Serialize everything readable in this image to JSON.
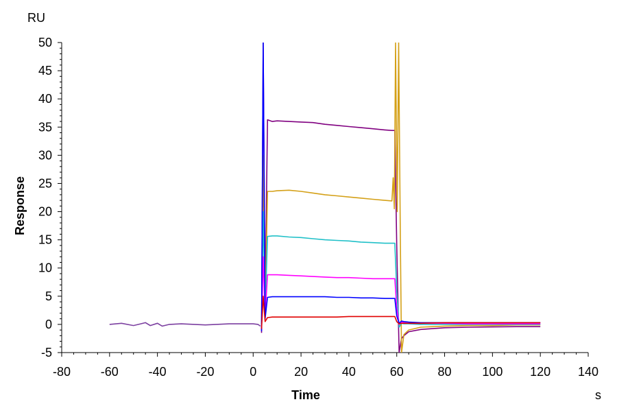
{
  "chart_data": {
    "type": "line",
    "title": "",
    "xlabel": "Time",
    "ylabel": "Response",
    "x_unit": "s",
    "y_unit": "RU",
    "xlim": [
      -80,
      140
    ],
    "ylim": [
      -5,
      50
    ],
    "x_ticks": [
      -80,
      -60,
      -40,
      -20,
      0,
      20,
      40,
      60,
      80,
      100,
      120,
      140
    ],
    "y_ticks": [
      -5,
      0,
      5,
      10,
      15,
      20,
      25,
      30,
      35,
      40,
      45,
      50
    ],
    "grid": false,
    "legend": "none",
    "baseline": {
      "color": "#7b3fa0",
      "x": [
        -60,
        -55,
        -50,
        -47,
        -45,
        -43,
        -40,
        -38,
        -35,
        -30,
        -20,
        -10,
        0,
        2,
        3
      ],
      "y": [
        0.0,
        0.2,
        -0.2,
        0.1,
        0.3,
        -0.2,
        0.2,
        -0.3,
        0.0,
        0.1,
        -0.1,
        0.1,
        0.1,
        0.0,
        -0.3
      ]
    },
    "series": [
      {
        "color": "#800080",
        "x": [
          3.5,
          4.2,
          5,
          6,
          8,
          10,
          15,
          20,
          25,
          30,
          35,
          40,
          45,
          50,
          55,
          58,
          59.2,
          60,
          61,
          62,
          63,
          65,
          70,
          80,
          90,
          100,
          110,
          120
        ],
        "y": [
          -1.5,
          50,
          3,
          36.3,
          36.0,
          36.1,
          36.0,
          35.9,
          35.8,
          35.5,
          35.3,
          35.1,
          34.9,
          34.7,
          34.5,
          34.4,
          34.4,
          14,
          -5,
          -2.5,
          -2.0,
          -1.3,
          -0.9,
          -0.6,
          -0.5,
          -0.45,
          -0.4,
          -0.4
        ]
      },
      {
        "color": "#d4a017",
        "x": [
          3.5,
          4.2,
          5,
          6,
          8,
          10,
          15,
          20,
          25,
          30,
          35,
          40,
          45,
          50,
          55,
          58,
          58.5,
          59,
          59.5,
          60.2,
          60.8,
          61.5,
          62,
          63,
          65,
          70,
          80,
          90,
          100,
          110,
          120
        ],
        "y": [
          -1.0,
          30,
          2.0,
          23.6,
          23.6,
          23.7,
          23.8,
          23.6,
          23.3,
          23.0,
          22.8,
          22.6,
          22.4,
          22.2,
          22.0,
          21.9,
          26,
          20.5,
          50,
          20,
          50,
          15,
          -5,
          -1.8,
          -1.0,
          -0.5,
          -0.3,
          -0.2,
          -0.2,
          -0.1,
          -0.1
        ]
      },
      {
        "color": "#20c0c8",
        "x": [
          3.5,
          4.2,
          5,
          6,
          8,
          10,
          15,
          20,
          25,
          30,
          35,
          40,
          45,
          50,
          55,
          58,
          59.2,
          60,
          61,
          62,
          63,
          65,
          70,
          80,
          90,
          100,
          110,
          120
        ],
        "y": [
          -1.0,
          20,
          2.0,
          15.6,
          15.7,
          15.7,
          15.5,
          15.4,
          15.2,
          15.0,
          14.9,
          14.8,
          14.6,
          14.5,
          14.4,
          14.4,
          14.4,
          6,
          -0.5,
          0.2,
          0.1,
          0.1,
          0.0,
          0.0,
          0.0,
          0.0,
          0.0,
          0.0
        ]
      },
      {
        "color": "#ff00ff",
        "x": [
          3.5,
          4.2,
          5,
          6,
          8,
          10,
          15,
          20,
          25,
          30,
          35,
          40,
          45,
          50,
          55,
          58,
          59.2,
          60,
          61,
          62,
          63,
          65,
          70,
          80,
          90,
          100,
          110,
          120
        ],
        "y": [
          -1.0,
          12,
          1.5,
          8.8,
          8.8,
          8.8,
          8.7,
          8.6,
          8.5,
          8.4,
          8.3,
          8.3,
          8.2,
          8.1,
          8.1,
          8.1,
          8.1,
          3,
          0.0,
          0.4,
          0.3,
          0.2,
          0.2,
          0.2,
          0.1,
          0.1,
          0.1,
          0.1
        ]
      },
      {
        "color": "#0000ff",
        "x": [
          3.5,
          4.2,
          5,
          6,
          8,
          10,
          15,
          20,
          25,
          30,
          35,
          40,
          45,
          50,
          55,
          58,
          59.2,
          60,
          61,
          62,
          63,
          65,
          70,
          80,
          90,
          100,
          110,
          120
        ],
        "y": [
          -1.2,
          50,
          1.0,
          4.8,
          4.9,
          4.9,
          4.9,
          4.9,
          4.9,
          4.9,
          4.8,
          4.8,
          4.7,
          4.7,
          4.6,
          4.6,
          4.6,
          1.5,
          0.2,
          0.6,
          0.5,
          0.4,
          0.3,
          0.3,
          0.3,
          0.3,
          0.3,
          0.3
        ]
      },
      {
        "color": "#e00000",
        "x": [
          3.5,
          4.2,
          5,
          6,
          8,
          10,
          15,
          20,
          25,
          30,
          35,
          40,
          45,
          50,
          55,
          58,
          59.2,
          60,
          61,
          62,
          63,
          65,
          70,
          80,
          90,
          100,
          110,
          120
        ],
        "y": [
          -0.8,
          5,
          0.5,
          1.2,
          1.3,
          1.3,
          1.3,
          1.3,
          1.3,
          1.3,
          1.3,
          1.4,
          1.4,
          1.4,
          1.4,
          1.4,
          1.4,
          0.5,
          0.1,
          0.2,
          0.2,
          0.2,
          0.2,
          0.3,
          0.3,
          0.3,
          0.3,
          0.3
        ]
      }
    ]
  }
}
